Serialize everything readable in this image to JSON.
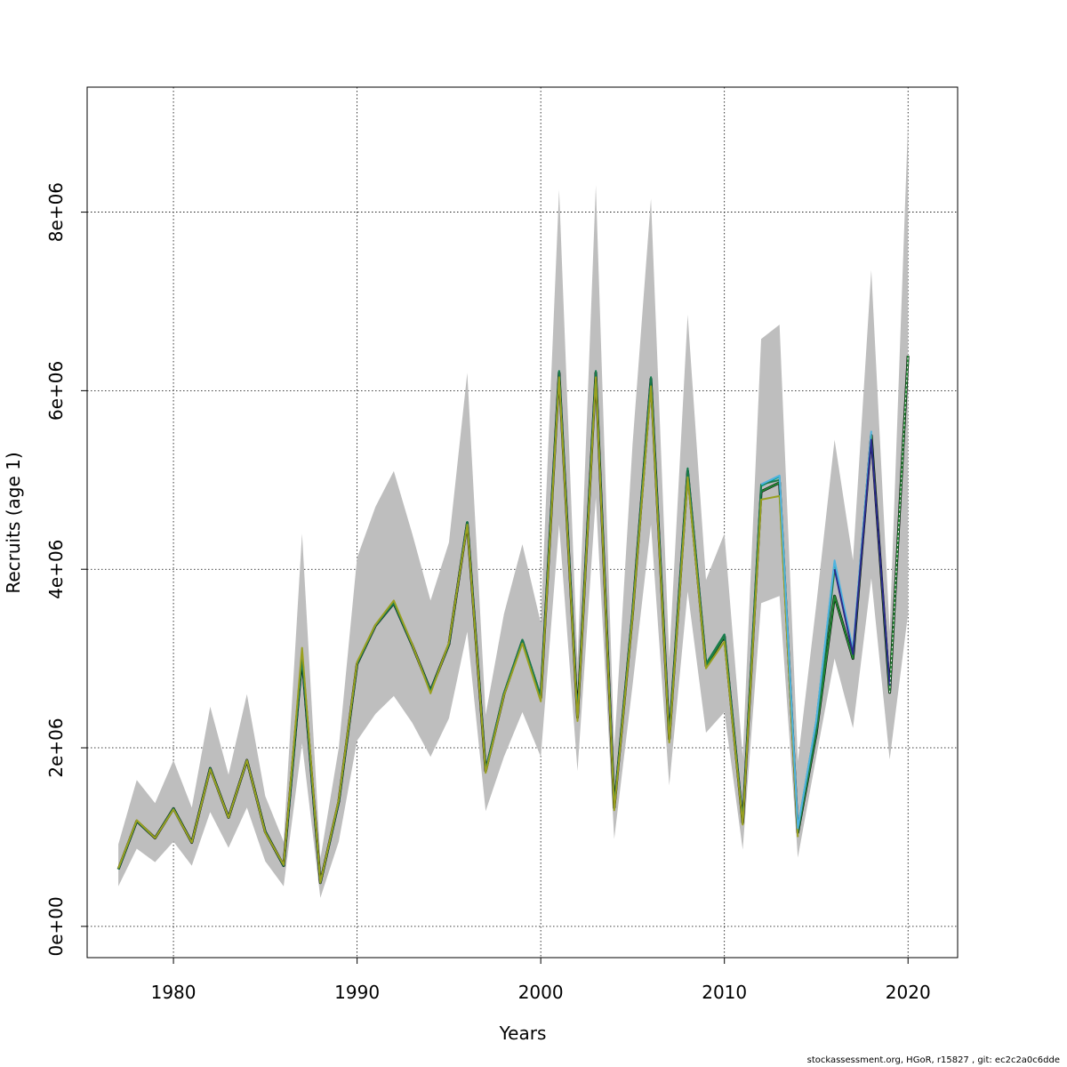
{
  "chart_data": {
    "type": "line",
    "title": "",
    "xlabel": "Years",
    "ylabel": "Recruits (age 1)",
    "xlim": [
      1975.3,
      2022.7
    ],
    "ylim": [
      -350000,
      9400000
    ],
    "xticks": [
      1980,
      1990,
      2000,
      2010,
      2020
    ],
    "xtick_labels": [
      "1980",
      "1990",
      "2000",
      "2010",
      "2020"
    ],
    "yticks": [
      0,
      2000000,
      4000000,
      6000000,
      8000000
    ],
    "ytick_labels": [
      "0e+00",
      "2e+06",
      "4e+06",
      "6e+06",
      "8e+06"
    ],
    "grid": true,
    "colors": {
      "band": "#bebebe",
      "base": "#000000",
      "series": [
        "#228833",
        "#00a08a",
        "#1b7a4a",
        "#9aa020",
        "#4fb3e0",
        "#2b2a8a"
      ]
    },
    "band": {
      "x": [
        1977,
        1978,
        1979,
        1980,
        1981,
        1982,
        1983,
        1984,
        1985,
        1986,
        1987,
        1988,
        1989,
        1990,
        1991,
        1992,
        1993,
        1994,
        1995,
        1996,
        1997,
        1998,
        1999,
        2000,
        2001,
        2002,
        2003,
        2004,
        2005,
        2006,
        2007,
        2008,
        2009,
        2010,
        2011,
        2012,
        2013,
        2014,
        2015,
        2016,
        2017,
        2018,
        2019,
        2020
      ],
      "lower": [
        450000,
        870000,
        720000,
        950000,
        680000,
        1280000,
        880000,
        1330000,
        730000,
        450000,
        2050000,
        320000,
        950000,
        2080000,
        2380000,
        2580000,
        2280000,
        1900000,
        2330000,
        3300000,
        1290000,
        1900000,
        2400000,
        1900000,
        4500000,
        1740000,
        4800000,
        980000,
        2700000,
        4500000,
        1580000,
        3750000,
        2170000,
        2400000,
        860000,
        3620000,
        3700000,
        770000,
        1900000,
        3000000,
        2220000,
        3900000,
        1870000,
        3500000
      ],
      "upper": [
        920000,
        1640000,
        1380000,
        1860000,
        1330000,
        2460000,
        1700000,
        2600000,
        1460000,
        950000,
        4400000,
        760000,
        2000000,
        4130000,
        4700000,
        5100000,
        4400000,
        3650000,
        4300000,
        6200000,
        2370000,
        3500000,
        4280000,
        3400000,
        8250000,
        2950000,
        8300000,
        2000000,
        5400000,
        8150000,
        3000000,
        6850000,
        3880000,
        4400000,
        1900000,
        6580000,
        6740000,
        1850000,
        3600000,
        5450000,
        4100000,
        7350000,
        3300000,
        9000000
      ]
    },
    "series": [
      {
        "x": [
          1977,
          1978,
          1979,
          1980,
          1981,
          1982,
          1983,
          1984,
          1985,
          1986,
          1987,
          1988,
          1989,
          1990,
          1991,
          1992,
          1993,
          1994,
          1995,
          1996,
          1997,
          1998,
          1999,
          2000,
          2001,
          2002,
          2003,
          2004,
          2005,
          2006,
          2007,
          2008,
          2009,
          2010,
          2011,
          2012,
          2013,
          2014,
          2015,
          2016,
          2017,
          2018,
          2019,
          2020
        ],
        "values": [
          640000,
          1180000,
          990000,
          1320000,
          940000,
          1770000,
          1220000,
          1860000,
          1060000,
          680000,
          3010000,
          490000,
          1400000,
          2940000,
          3370000,
          3620000,
          3150000,
          2640000,
          3160000,
          4520000,
          1740000,
          2600000,
          3200000,
          2560000,
          6200000,
          2340000,
          6200000,
          1330000,
          3500000,
          6130000,
          2100000,
          5100000,
          2920000,
          3250000,
          1160000,
          4870000,
          4970000,
          1050000,
          2160000,
          3700000,
          3000000,
          5500000,
          2620000,
          6390000
        ]
      },
      {
        "x": [
          1977,
          1978,
          1979,
          1980,
          1981,
          1982,
          1983,
          1984,
          1985,
          1986,
          1987,
          1988,
          1989,
          1990,
          1991,
          1992,
          1993,
          1994,
          1995,
          1996,
          1997,
          1998,
          1999,
          2000,
          2001,
          2002,
          2003,
          2004,
          2005,
          2006,
          2007,
          2008,
          2009,
          2010,
          2011,
          2012,
          2013,
          2014,
          2015,
          2016,
          2017
        ],
        "values": [
          640000,
          1180000,
          990000,
          1320000,
          940000,
          1770000,
          1220000,
          1860000,
          1060000,
          680000,
          3010000,
          490000,
          1400000,
          2940000,
          3370000,
          3620000,
          3150000,
          2640000,
          3160000,
          4530000,
          1750000,
          2610000,
          3210000,
          2580000,
          6220000,
          2350000,
          6220000,
          1340000,
          3520000,
          6150000,
          2110000,
          5130000,
          2940000,
          3270000,
          1170000,
          4930000,
          5040000,
          1100000,
          2300000,
          4080000,
          3060000
        ]
      },
      {
        "x": [
          1977,
          1978,
          1979,
          1980,
          1981,
          1982,
          1983,
          1984,
          1985,
          1986,
          1987,
          1988,
          1989,
          1990,
          1991,
          1992,
          1993,
          1994,
          1995,
          1996,
          1997,
          1998,
          1999,
          2000,
          2001,
          2002,
          2003,
          2004,
          2005,
          2006,
          2007,
          2008,
          2009,
          2010,
          2011,
          2012,
          2013,
          2014,
          2015,
          2016
        ],
        "values": [
          640000,
          1180000,
          990000,
          1320000,
          940000,
          1770000,
          1220000,
          1860000,
          1060000,
          680000,
          3020000,
          490000,
          1400000,
          2940000,
          3370000,
          3620000,
          3150000,
          2640000,
          3160000,
          4530000,
          1750000,
          2610000,
          3210000,
          2580000,
          6220000,
          2350000,
          6220000,
          1340000,
          3520000,
          6150000,
          2110000,
          5130000,
          2940000,
          3270000,
          1170000,
          4950000,
          5000000,
          1080000,
          2200000,
          4000000
        ]
      },
      {
        "x": [
          1977,
          1978,
          1979,
          1980,
          1981,
          1982,
          1983,
          1984,
          1985,
          1986,
          1987,
          1988,
          1989,
          1990,
          1991,
          1992,
          1993,
          1994,
          1995,
          1996,
          1997,
          1998,
          1999,
          2000,
          2001,
          2002,
          2003,
          2004,
          2005,
          2006,
          2007,
          2008,
          2009,
          2010,
          2011,
          2012,
          2013,
          2014
        ],
        "values": [
          650000,
          1190000,
          990000,
          1310000,
          940000,
          1760000,
          1220000,
          1860000,
          1050000,
          690000,
          3120000,
          490000,
          1420000,
          2960000,
          3380000,
          3650000,
          3160000,
          2610000,
          3180000,
          4500000,
          1720000,
          2590000,
          3170000,
          2520000,
          6150000,
          2300000,
          6150000,
          1300000,
          3470000,
          6050000,
          2060000,
          5030000,
          2890000,
          3190000,
          1140000,
          4780000,
          4820000,
          1000000
        ]
      },
      {
        "x": [
          2012,
          2013,
          2014,
          2015,
          2016,
          2017,
          2018
        ],
        "values": [
          4950000,
          5050000,
          1100000,
          2300000,
          4100000,
          3100000,
          5550000
        ]
      },
      {
        "x": [
          2016,
          2017,
          2018,
          2019
        ],
        "values": [
          4000000,
          3050000,
          5450000,
          2700000
        ]
      }
    ]
  },
  "footer": "stockassessment.org, HGoR, r15827 , git: ec2c2a0c6dde"
}
